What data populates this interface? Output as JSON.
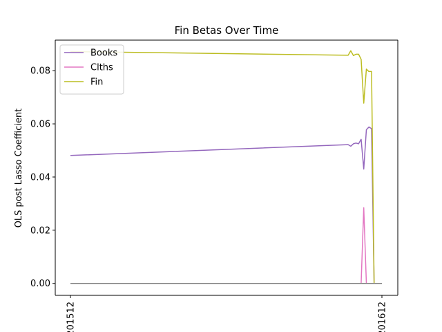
{
  "chart_data": {
    "type": "line",
    "title": "Fin   Betas Over Time",
    "xlabel": "",
    "ylabel": "OLS post Lasso Coefficient",
    "x_tick_labels": [
      "201512",
      "201612"
    ],
    "y_ticks": [
      0.0,
      0.02,
      0.04,
      0.06,
      0.08
    ],
    "y_tick_labels": [
      "0.00",
      "0.02",
      "0.04",
      "0.06",
      "0.08"
    ],
    "xlim": [
      0,
      12.5
    ],
    "ylim": [
      -0.0045,
      0.0915
    ],
    "grid": false,
    "legend_position": "top-left",
    "x_tick_positions": [
      0,
      12
    ],
    "series": [
      {
        "name": "Books",
        "color": "#9467bd",
        "in_legend": true,
        "x": [
          0,
          10.7,
          10.8,
          10.9,
          11.0,
          11.1,
          11.2,
          11.3,
          11.4,
          11.5,
          11.6,
          11.7,
          11.75
        ],
        "y": [
          0.0481,
          0.0522,
          0.0516,
          0.0525,
          0.0528,
          0.0525,
          0.0542,
          0.043,
          0.0578,
          0.0588,
          0.0582,
          0.0,
          0.0
        ]
      },
      {
        "name": "Clths",
        "color": "#e377c2",
        "in_legend": true,
        "x": [
          0,
          11.2,
          11.3,
          11.4,
          12
        ],
        "y": [
          0.0,
          0.0,
          0.0285,
          0.0,
          0.0
        ]
      },
      {
        "name": "Fin",
        "color": "#bcbd22",
        "in_legend": true,
        "x": [
          0,
          10.7,
          10.8,
          10.9,
          11.0,
          11.1,
          11.2,
          11.3,
          11.4,
          11.5,
          11.6,
          11.7,
          11.75
        ],
        "y": [
          0.0872,
          0.0858,
          0.0875,
          0.0857,
          0.0862,
          0.0862,
          0.0843,
          0.0678,
          0.0806,
          0.0797,
          0.0797,
          0.0,
          0.0
        ]
      },
      {
        "name": "",
        "color": "#17becf",
        "in_legend": false,
        "x": [
          0,
          12
        ],
        "y": [
          0.0,
          0.0
        ]
      },
      {
        "name": "",
        "color": "#7f7f7f",
        "in_legend": false,
        "x": [
          0,
          12
        ],
        "y": [
          0.0,
          0.0
        ]
      }
    ]
  }
}
